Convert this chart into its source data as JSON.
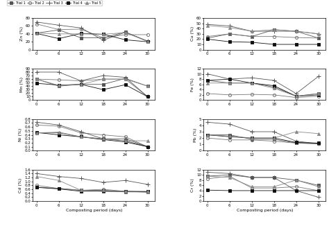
{
  "x": [
    0,
    6,
    12,
    18,
    24,
    30
  ],
  "trials": [
    "Trial 1",
    "Trial 2",
    "Trial 3",
    "Trial 4",
    "Trial 5"
  ],
  "markers": [
    "s",
    "o",
    "+",
    "s",
    "^"
  ],
  "marker_sizes": [
    3,
    3,
    5,
    3,
    3
  ],
  "fillstyles": [
    "full",
    "none",
    "none",
    "full",
    "full"
  ],
  "colors": [
    "#555555",
    "#777777",
    "#555555",
    "#111111",
    "#888888"
  ],
  "Zn": {
    "ylabel": "Zn (%)",
    "ylim": [
      0,
      80
    ],
    "yticks": [
      0,
      20,
      40,
      60,
      80
    ],
    "data": [
      [
        42,
        50,
        30,
        30,
        45,
        21
      ],
      [
        65,
        51,
        52,
        30,
        38,
        38
      ],
      [
        70,
        62,
        55,
        24,
        44,
        22
      ],
      [
        41,
        28,
        41,
        39,
        25,
        20
      ],
      [
        42,
        40,
        40,
        39,
        43,
        21
      ]
    ]
  },
  "Mn": {
    "ylabel": "Mn (%)",
    "ylim": [
      0,
      90
    ],
    "yticks": [
      0,
      10,
      20,
      30,
      40,
      50,
      60,
      70,
      80,
      90
    ],
    "data": [
      [
        60,
        40,
        45,
        45,
        62,
        40
      ],
      [
        60,
        58,
        55,
        60,
        60,
        10
      ],
      [
        80,
        80,
        55,
        70,
        65,
        10
      ],
      [
        48,
        43,
        45,
        30,
        44,
        10
      ],
      [
        60,
        42,
        45,
        60,
        60,
        40
      ]
    ]
  },
  "Ni": {
    "ylabel": "Ni (%)",
    "ylim": [
      0.0,
      0.8
    ],
    "yticks": [
      0.0,
      0.1,
      0.2,
      0.3,
      0.4,
      0.5,
      0.6,
      0.7,
      0.8
    ],
    "data": [
      [
        0.45,
        0.45,
        0.35,
        0.3,
        0.25,
        0.1
      ],
      [
        0.65,
        0.62,
        0.45,
        0.4,
        0.35,
        0.1
      ],
      [
        0.72,
        0.65,
        0.48,
        0.3,
        0.3,
        0.1
      ],
      [
        0.46,
        0.4,
        0.35,
        0.28,
        0.22,
        0.1
      ],
      [
        0.45,
        0.47,
        0.35,
        0.3,
        0.25,
        0.25
      ]
    ]
  },
  "Cd": {
    "ylabel": "Cd (%)",
    "ylim": [
      0.0,
      1.6
    ],
    "yticks": [
      0.0,
      0.2,
      0.4,
      0.6,
      0.8,
      1.0,
      1.2,
      1.4,
      1.6
    ],
    "data": [
      [
        0.7,
        0.65,
        0.55,
        0.5,
        0.47,
        0.47
      ],
      [
        0.8,
        0.64,
        0.55,
        0.6,
        0.5,
        0.45
      ],
      [
        1.4,
        1.25,
        1.15,
        0.95,
        1.05,
        0.85
      ],
      [
        0.7,
        0.62,
        0.5,
        0.52,
        0.5,
        0.48
      ],
      [
        1.25,
        1.05,
        0.55,
        0.55,
        0.5,
        0.5
      ]
    ]
  },
  "Cu": {
    "ylabel": "Cu (%)",
    "ylim": [
      0,
      60
    ],
    "yticks": [
      0,
      10,
      20,
      30,
      40,
      50,
      60
    ],
    "data": [
      [
        22,
        30,
        25,
        38,
        35,
        22
      ],
      [
        25,
        30,
        25,
        25,
        23,
        22
      ],
      [
        48,
        45,
        35,
        35,
        35,
        30
      ],
      [
        20,
        15,
        14,
        10,
        10,
        10
      ],
      [
        46,
        42,
        35,
        38,
        35,
        30
      ]
    ]
  },
  "Fe": {
    "ylabel": "Fe (%)",
    "ylim": [
      0,
      12
    ],
    "yticks": [
      0,
      2,
      4,
      6,
      8,
      10,
      12
    ],
    "data": [
      [
        7.5,
        6.5,
        6.5,
        5.0,
        1.5,
        2.5
      ],
      [
        2.5,
        2.0,
        2.2,
        2.0,
        1.0,
        1.5
      ],
      [
        10.0,
        8.0,
        8.5,
        7.5,
        2.5,
        9.0
      ],
      [
        7.5,
        8.0,
        6.5,
        5.5,
        1.5,
        2.0
      ],
      [
        6.5,
        6.5,
        6.5,
        4.5,
        1.5,
        2.5
      ]
    ]
  },
  "Pb": {
    "ylabel": "Pb (%)",
    "ylim": [
      0,
      5
    ],
    "yticks": [
      0,
      1,
      2,
      3,
      4,
      5
    ],
    "data": [
      [
        2.5,
        2.5,
        1.8,
        1.8,
        1.2,
        1.1
      ],
      [
        2.0,
        1.7,
        1.7,
        1.5,
        1.2,
        1.1
      ],
      [
        4.5,
        4.2,
        3.0,
        3.0,
        1.5,
        1.1
      ],
      [
        2.5,
        2.2,
        2.0,
        2.0,
        1.3,
        1.2
      ],
      [
        2.5,
        2.3,
        2.0,
        2.0,
        3.0,
        2.7
      ]
    ]
  },
  "Cr": {
    "ylabel": "Cr (%)",
    "ylim": [
      0,
      12
    ],
    "yticks": [
      0,
      2,
      4,
      6,
      8,
      10,
      12
    ],
    "data": [
      [
        9.5,
        10.0,
        9.0,
        9.0,
        8.0,
        6.0
      ],
      [
        8.5,
        9.5,
        5.0,
        5.0,
        5.5,
        4.0
      ],
      [
        11.0,
        10.5,
        9.0,
        9.0,
        4.0,
        1.5
      ],
      [
        4.2,
        4.0,
        4.0,
        4.0,
        4.0,
        4.0
      ],
      [
        9.5,
        9.0,
        5.5,
        5.5,
        8.0,
        5.5
      ]
    ]
  },
  "xlabel": "Composting period (days)"
}
